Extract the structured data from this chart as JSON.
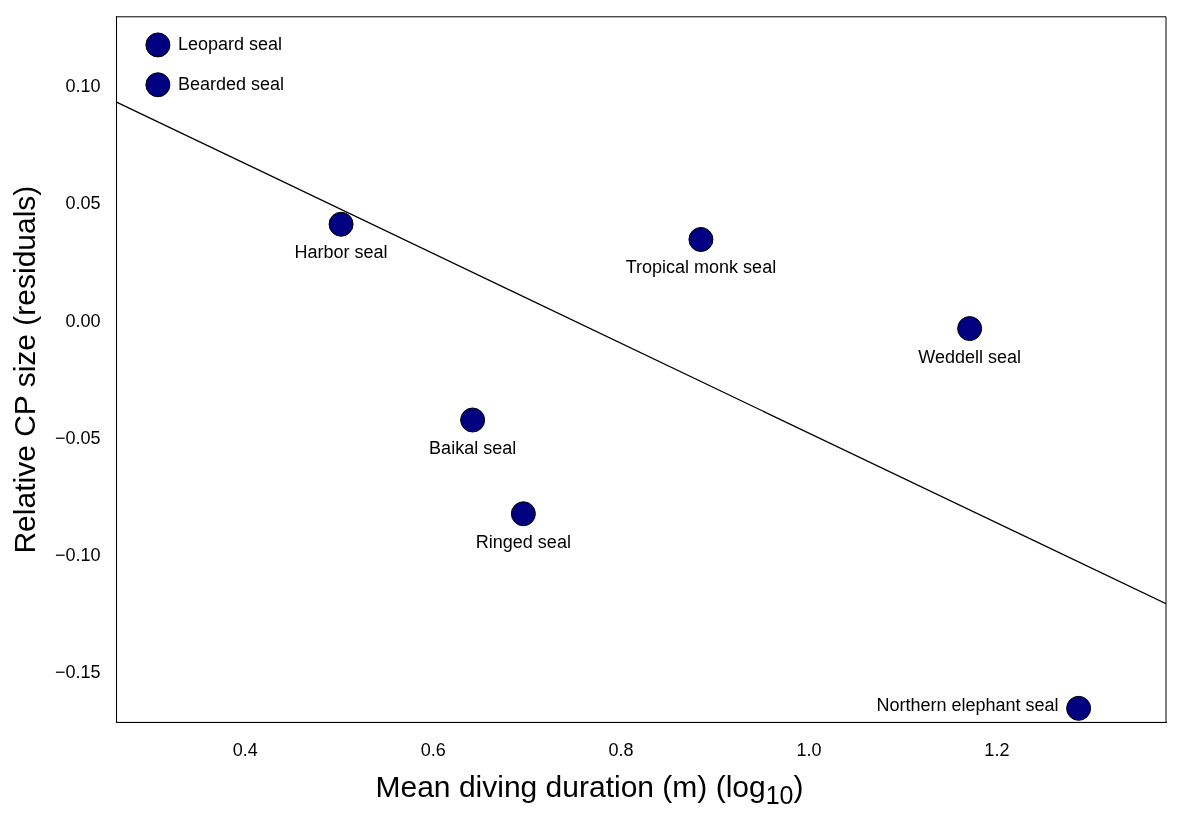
{
  "chart_data": {
    "type": "scatter",
    "xlabel": "Mean diving duration (m) (log$_{10}$)",
    "ylabel": "Relative CP size (residuals)",
    "xlim": [
      0.263,
      1.38
    ],
    "ylim": [
      -0.171,
      0.13
    ],
    "xticks": [
      0.4,
      0.6,
      0.8,
      {
        "value": 1,
        "label": "1.0"
      },
      1.2
    ],
    "yticks": [
      {
        "value": -0.15,
        "label": "−0.15"
      },
      {
        "value": -0.1,
        "label": "−0.10"
      },
      {
        "value": -0.05,
        "label": "−0.05"
      },
      {
        "value": 0,
        "label": "0.00"
      },
      {
        "value": 0.05,
        "label": "0.05"
      },
      {
        "value": 0.1,
        "label": "0.10"
      }
    ],
    "grid": false,
    "legend": false,
    "marker": "circle",
    "series": [
      {
        "type": "scatter",
        "color": "#000080",
        "x": [
          0.307,
          0.307,
          0.502,
          0.885,
          1.171,
          0.642,
          0.696,
          1.287
        ],
        "values": [
          0.118,
          0.101,
          0.0415,
          0.035,
          -0.003,
          -0.042,
          -0.082,
          -0.165
        ]
      },
      {
        "type": "line",
        "color": "#000000",
        "marker": "none",
        "x": [
          0.263,
          1.38
        ],
        "values": [
          0.0936,
          -0.1204
        ]
      }
    ],
    "annotations": [
      {
        "text": "Leopard seal",
        "x": 0.307,
        "y": 0.118
      },
      {
        "text": "Bearded seal",
        "x": 0.307,
        "y": 0.101
      },
      {
        "text": "Harbor seal",
        "x": 0.502,
        "y": 0.0415
      },
      {
        "text": "Tropical monk seal",
        "x": 0.885,
        "y": 0.035
      },
      {
        "text": "Weddell seal",
        "x": 1.171,
        "y": -0.003
      },
      {
        "text": "Baikal seal",
        "x": 0.642,
        "y": -0.042
      },
      {
        "text": "Ringed seal",
        "x": 0.696,
        "y": -0.082
      },
      {
        "text": "Northern elephant seal",
        "x": 1.287,
        "y": -0.165
      }
    ]
  }
}
